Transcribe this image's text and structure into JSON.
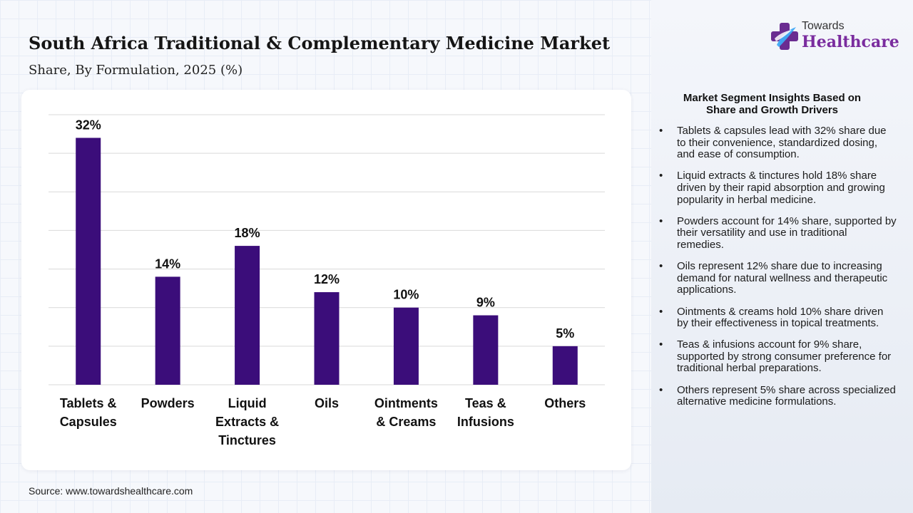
{
  "title": "South Africa Traditional & Complementary Medicine Market",
  "subtitle": "Share, By Formulation, 2025 (%)",
  "source": "Source: www.towardshealthcare.com",
  "logo": {
    "top_text": "Towards",
    "bottom_text": "Healthcare",
    "icon": "cross-plus-icon",
    "colors": [
      "#6a2c91",
      "#3fa9f5"
    ]
  },
  "insights": {
    "heading": "Market Segment Insights Based on Share and Growth Drivers",
    "bullet": "•",
    "items": [
      "Tablets & capsules lead with 32% share due to their convenience, standardized dosing, and ease of consumption.",
      "Liquid extracts & tinctures hold 18% share driven by their rapid absorption and growing popularity in herbal medicine.",
      "Powders account for 14% share, supported by their versatility and use in traditional remedies.",
      "Oils represent 12% share due to increasing demand for natural wellness and therapeutic applications.",
      "Ointments & creams hold 10% share driven by their effectiveness in topical treatments.",
      "Teas & infusions account for 9% share, supported by strong consumer preference for traditional herbal preparations.",
      "Others represent 5% share across specialized alternative medicine formulations."
    ]
  },
  "chart_data": {
    "type": "bar",
    "categories": [
      [
        "Tablets &",
        "Capsules"
      ],
      [
        "Powders"
      ],
      [
        "Liquid",
        "Extracts &",
        "Tinctures"
      ],
      [
        "Oils"
      ],
      [
        "Ointments",
        "& Creams"
      ],
      [
        "Teas &",
        "Infusions"
      ],
      [
        "Others"
      ]
    ],
    "values": [
      32,
      14,
      18,
      12,
      10,
      9,
      5
    ],
    "data_labels": [
      "32%",
      "14%",
      "18%",
      "12%",
      "10%",
      "9%",
      "5%"
    ],
    "ylim": [
      0,
      35
    ],
    "y_gridlines": [
      0,
      5,
      10,
      15,
      20,
      25,
      30,
      35
    ],
    "grid": true,
    "bar_color": "#3b0d7a",
    "gridline_color": "#d9d9d9"
  }
}
